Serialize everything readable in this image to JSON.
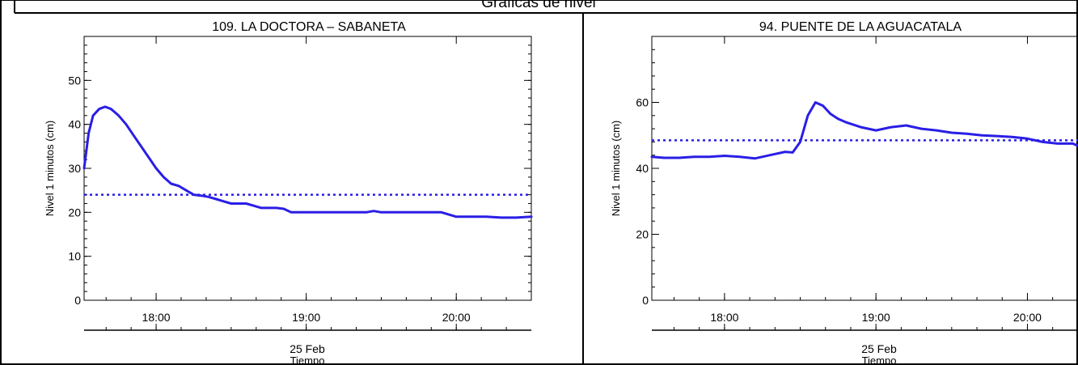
{
  "page": {
    "header_title": "Gráficas de nivel"
  },
  "chart_data": [
    {
      "type": "line",
      "title": "109. LA DOCTORA – SABANETA",
      "ylabel": "Nivel 1 minutos (cm)",
      "xlabel": "Tiempo",
      "date_label": "25 Feb",
      "xlim": [
        17.52,
        20.5
      ],
      "ylim": [
        0,
        60
      ],
      "xticks": [
        {
          "v": 18,
          "label": "18:00"
        },
        {
          "v": 19,
          "label": "19:00"
        },
        {
          "v": 20,
          "label": "20:00"
        }
      ],
      "yticks": [
        {
          "v": 0,
          "label": "0"
        },
        {
          "v": 10,
          "label": "10"
        },
        {
          "v": 20,
          "label": "20"
        },
        {
          "v": 30,
          "label": "30"
        },
        {
          "v": 40,
          "label": "40"
        },
        {
          "v": 50,
          "label": "50"
        }
      ],
      "ytick_minor_step": 2,
      "threshold": 24,
      "colors": {
        "series": "#2a1ee6",
        "threshold": "#2a1ee6"
      },
      "series": [
        {
          "x": [
            17.52,
            17.55,
            17.58,
            17.62,
            17.66,
            17.7,
            17.75,
            17.8,
            17.85,
            17.9,
            17.95,
            18.0,
            18.05,
            18.1,
            18.15,
            18.2,
            18.25,
            18.3,
            18.35,
            18.4,
            18.45,
            18.5,
            18.55,
            18.6,
            18.65,
            18.7,
            18.75,
            18.8,
            18.85,
            18.9,
            18.95,
            19.0,
            19.1,
            19.2,
            19.3,
            19.4,
            19.45,
            19.5,
            19.6,
            19.7,
            19.8,
            19.9,
            20.0,
            20.1,
            20.2,
            20.3,
            20.4,
            20.5
          ],
          "y": [
            30,
            38,
            42,
            43.5,
            44,
            43.5,
            42,
            40,
            37.5,
            35,
            32.5,
            30,
            28,
            26.5,
            26,
            25,
            24,
            23.8,
            23.5,
            23,
            22.5,
            22,
            22,
            22,
            21.5,
            21,
            21,
            21,
            20.8,
            20,
            20,
            20,
            20,
            20,
            20,
            20,
            20.3,
            20,
            20,
            20,
            20,
            20,
            19,
            19,
            19,
            18.8,
            18.8,
            19
          ]
        }
      ]
    },
    {
      "type": "line",
      "title": "94. PUENTE DE LA AGUACATALA",
      "ylabel": "Nivel 1 minutos (cm)",
      "xlabel": "Tiempo",
      "date_label": "25 Feb",
      "xlim": [
        17.52,
        20.35
      ],
      "ylim": [
        0,
        80
      ],
      "xticks": [
        {
          "v": 18,
          "label": "18:00"
        },
        {
          "v": 19,
          "label": "19:00"
        },
        {
          "v": 20,
          "label": "20:00"
        }
      ],
      "yticks": [
        {
          "v": 0,
          "label": "0"
        },
        {
          "v": 20,
          "label": "20"
        },
        {
          "v": 40,
          "label": "40"
        },
        {
          "v": 60,
          "label": "60"
        }
      ],
      "ytick_minor_step": 4,
      "threshold": 48.5,
      "colors": {
        "series": "#2a1ee6",
        "threshold": "#2a1ee6"
      },
      "series": [
        {
          "x": [
            17.52,
            17.6,
            17.7,
            17.8,
            17.9,
            18.0,
            18.1,
            18.2,
            18.3,
            18.4,
            18.45,
            18.5,
            18.55,
            18.6,
            18.65,
            18.7,
            18.75,
            18.8,
            18.9,
            19.0,
            19.1,
            19.2,
            19.3,
            19.4,
            19.5,
            19.6,
            19.7,
            19.8,
            19.9,
            20.0,
            20.1,
            20.2,
            20.3,
            20.35
          ],
          "y": [
            43.5,
            43.2,
            43.2,
            43.5,
            43.5,
            43.8,
            43.5,
            43,
            44,
            45,
            44.8,
            48,
            56,
            60,
            59,
            56.5,
            55,
            54,
            52.5,
            51.5,
            52.5,
            53,
            52,
            51.5,
            50.8,
            50.5,
            50,
            49.8,
            49.5,
            49,
            48,
            47.5,
            47.5,
            46.5
          ]
        }
      ]
    }
  ]
}
